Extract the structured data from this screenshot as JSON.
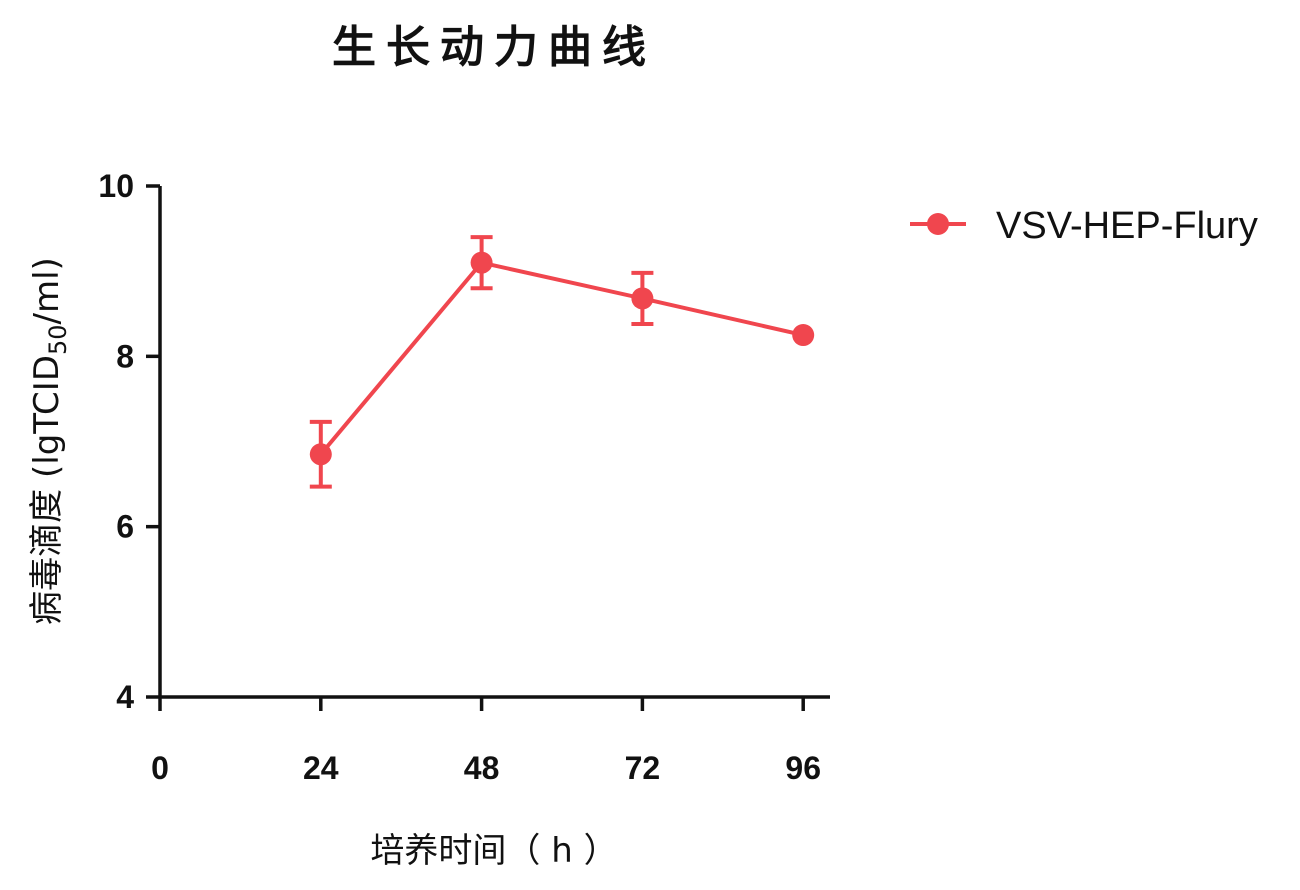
{
  "chart_data": {
    "type": "line",
    "title": "生长动力曲线",
    "xlabel": "培养时间（ h ）",
    "ylabel": {
      "main": "病毒滴度 (lgTCID",
      "subscript": "50",
      "suffix": "/ml)"
    },
    "xlim": [
      0,
      100
    ],
    "ylim": [
      4,
      10
    ],
    "x_ticks": [
      "0",
      "24",
      "48",
      "72",
      "96"
    ],
    "y_ticks": [
      "4",
      "6",
      "8",
      "10"
    ],
    "x": [
      24,
      48,
      72,
      96
    ],
    "series": [
      {
        "name": "VSV-HEP-Flury",
        "color": "#f0464e",
        "marker": "circle",
        "values": [
          6.85,
          9.1,
          8.68,
          8.25
        ],
        "error": [
          0.38,
          0.3,
          0.3,
          0.0
        ]
      }
    ],
    "legend_position": "right",
    "grid": false
  }
}
